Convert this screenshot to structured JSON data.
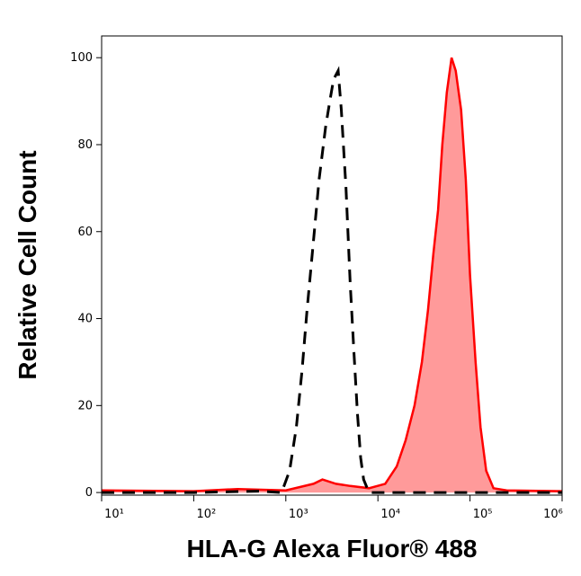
{
  "chart_data": {
    "type": "area",
    "x_label": "HLA-G Alexa Fluor® 488",
    "y_label": "Relative Cell Count",
    "xscale": "log",
    "xlim": [
      10,
      1000000
    ],
    "ylim": [
      -0.6,
      105
    ],
    "xticks": [
      {
        "value": 10,
        "label": "10¹"
      },
      {
        "value": 100,
        "label": "10²"
      },
      {
        "value": 1000,
        "label": "10³"
      },
      {
        "value": 10000,
        "label": "10⁴"
      },
      {
        "value": 100000,
        "label": "10⁵"
      },
      {
        "value": 1000000,
        "label": "10⁶"
      }
    ],
    "yticks": [
      0,
      20,
      40,
      60,
      80,
      100
    ],
    "series": [
      {
        "color": "#ff0000",
        "fill": "#ff9a9a",
        "dashed": false,
        "x": [
          10,
          100,
          300,
          1000,
          2000,
          2500,
          3500,
          5000,
          8000,
          12000,
          16000,
          20000,
          25000,
          30000,
          35000,
          40000,
          45000,
          50000,
          56000,
          63000,
          70000,
          80000,
          90000,
          100000,
          115000,
          130000,
          150000,
          180000,
          250000,
          1000000
        ],
        "values": [
          0.5,
          0.3,
          0.8,
          0.5,
          2,
          3,
          2,
          1.5,
          1,
          2,
          6,
          12,
          20,
          30,
          42,
          55,
          65,
          80,
          92,
          100,
          97,
          88,
          72,
          50,
          30,
          15,
          5,
          1,
          0.5,
          0.3
        ]
      },
      {
        "color": "#000000",
        "fill": "none",
        "dashed": true,
        "x": [
          10,
          100,
          500,
          900,
          1100,
          1300,
          1500,
          1700,
          2000,
          2300,
          2700,
          3000,
          3300,
          3700,
          4000,
          4500,
          5000,
          5500,
          6000,
          6500,
          7000,
          8000,
          1000000
        ],
        "values": [
          0,
          0,
          0.3,
          0,
          5,
          15,
          28,
          42,
          58,
          72,
          84,
          90,
          95,
          97,
          88,
          70,
          48,
          32,
          18,
          8,
          3,
          0,
          0
        ]
      }
    ]
  }
}
